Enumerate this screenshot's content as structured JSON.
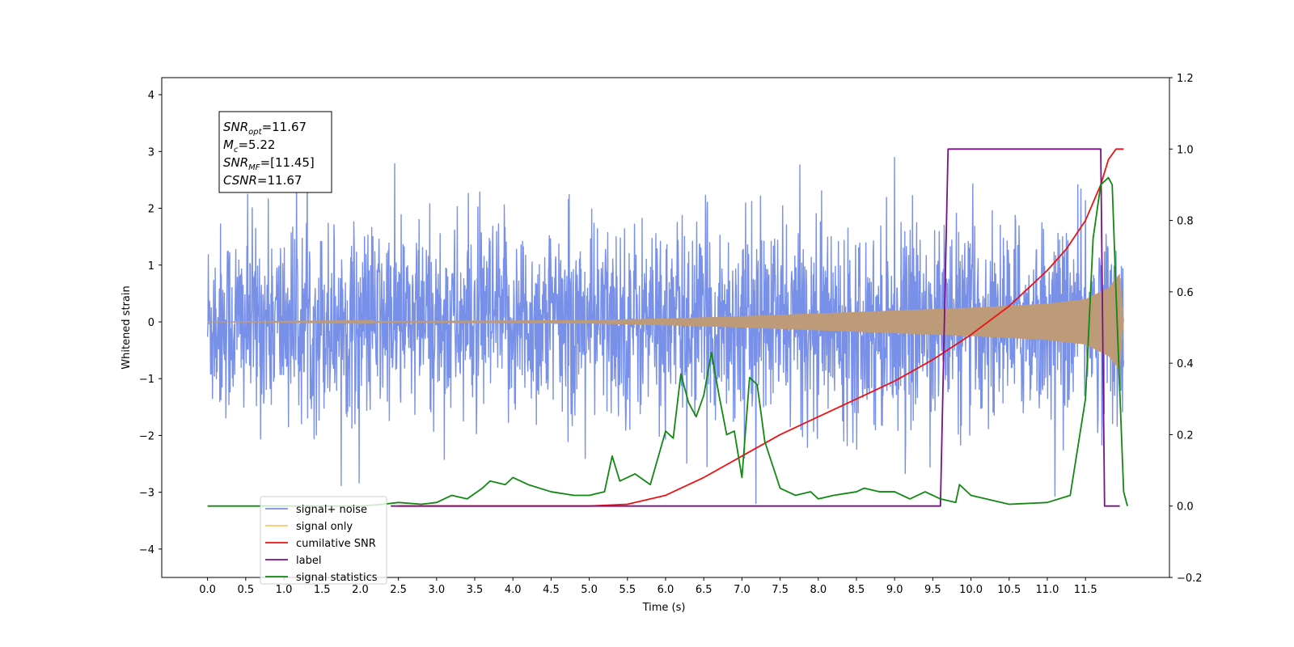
{
  "chart_data": {
    "type": "line",
    "title": "",
    "xlabel": "Time (s)",
    "ylabel": "Whitened strain",
    "xlim": [
      -0.6,
      12.6
    ],
    "ylim": [
      -4.5,
      4.3
    ],
    "y2lim": [
      -0.2,
      1.2
    ],
    "grid": false,
    "legend_position": "lower-left",
    "x_ticks": [
      "0.0",
      "0.5",
      "1.0",
      "1.5",
      "2.0",
      "2.5",
      "3.0",
      "3.5",
      "4.0",
      "4.5",
      "5.0",
      "5.5",
      "6.0",
      "6.5",
      "7.0",
      "7.5",
      "8.0",
      "8.5",
      "9.0",
      "9.5",
      "10.0",
      "10.5",
      "11.0",
      "11.5"
    ],
    "y_ticks": [
      "−4",
      "−3",
      "−2",
      "−1",
      "0",
      "1",
      "2",
      "3",
      "4"
    ],
    "y2_ticks": [
      "−0.2",
      "0.0",
      "0.2",
      "0.4",
      "0.6",
      "0.8",
      "1.0",
      "1.2"
    ],
    "annotations": {
      "snr_opt": {
        "sym": "SNR",
        "sub": "opt",
        "value": "=11.67"
      },
      "mc": {
        "sym": "M",
        "sub": "c",
        "value": "=5.22"
      },
      "snr_mf": {
        "sym": "SNR",
        "sub": "MF",
        "value": "=[11.45]"
      },
      "csnr": {
        "sym": "CSNR",
        "sub": "",
        "value": "=11.67"
      }
    },
    "series": [
      {
        "name": "signal+ noise",
        "color": "#7890e8",
        "axis": "left",
        "kind": "noise",
        "x_range": [
          0,
          12.0
        ],
        "noise_std": 0.85,
        "max": 3.9,
        "min": -4.1
      },
      {
        "name": "signal only",
        "color": "#bd9b78",
        "legend_color": "#ffc66b",
        "axis": "left",
        "kind": "chirp",
        "x_range": [
          0,
          12.0
        ],
        "envelope": [
          [
            0,
            0.0
          ],
          [
            5.0,
            0.03
          ],
          [
            6.0,
            0.06
          ],
          [
            7.0,
            0.1
          ],
          [
            8.0,
            0.15
          ],
          [
            9.0,
            0.2
          ],
          [
            10.0,
            0.25
          ],
          [
            11.0,
            0.32
          ],
          [
            11.5,
            0.4
          ],
          [
            11.8,
            0.6
          ],
          [
            11.95,
            0.85
          ],
          [
            12.0,
            0.0
          ]
        ]
      },
      {
        "name": "cumilative SNR",
        "color": "#ee1111",
        "axis": "right",
        "points": [
          [
            2.5,
            0.0
          ],
          [
            5.0,
            0.0
          ],
          [
            5.5,
            0.005
          ],
          [
            6.0,
            0.03
          ],
          [
            6.5,
            0.08
          ],
          [
            7.0,
            0.14
          ],
          [
            7.5,
            0.2
          ],
          [
            8.0,
            0.25
          ],
          [
            8.5,
            0.3
          ],
          [
            9.0,
            0.35
          ],
          [
            9.5,
            0.41
          ],
          [
            10.0,
            0.48
          ],
          [
            10.5,
            0.56
          ],
          [
            11.0,
            0.66
          ],
          [
            11.25,
            0.72
          ],
          [
            11.5,
            0.8
          ],
          [
            11.7,
            0.9
          ],
          [
            11.8,
            0.97
          ],
          [
            11.9,
            1.0
          ],
          [
            12.0,
            1.0
          ]
        ]
      },
      {
        "name": "label",
        "color": "#7a0f8a",
        "axis": "right",
        "points": [
          [
            2.4,
            0.0
          ],
          [
            9.6,
            0.0
          ],
          [
            9.7,
            1.0
          ],
          [
            11.7,
            1.0
          ],
          [
            11.75,
            0.0
          ],
          [
            11.95,
            0.0
          ]
        ]
      },
      {
        "name": "signal statistics",
        "color": "#118811",
        "axis": "right",
        "points": [
          [
            0.0,
            0.0
          ],
          [
            2.0,
            0.0
          ],
          [
            2.3,
            0.005
          ],
          [
            2.5,
            0.01
          ],
          [
            2.8,
            0.005
          ],
          [
            3.0,
            0.01
          ],
          [
            3.2,
            0.03
          ],
          [
            3.4,
            0.02
          ],
          [
            3.6,
            0.05
          ],
          [
            3.7,
            0.07
          ],
          [
            3.9,
            0.06
          ],
          [
            4.0,
            0.08
          ],
          [
            4.2,
            0.06
          ],
          [
            4.5,
            0.04
          ],
          [
            4.8,
            0.03
          ],
          [
            5.0,
            0.03
          ],
          [
            5.2,
            0.04
          ],
          [
            5.3,
            0.14
          ],
          [
            5.4,
            0.07
          ],
          [
            5.6,
            0.09
          ],
          [
            5.8,
            0.06
          ],
          [
            6.0,
            0.21
          ],
          [
            6.1,
            0.19
          ],
          [
            6.2,
            0.37
          ],
          [
            6.3,
            0.29
          ],
          [
            6.4,
            0.25
          ],
          [
            6.5,
            0.31
          ],
          [
            6.6,
            0.43
          ],
          [
            6.7,
            0.31
          ],
          [
            6.8,
            0.2
          ],
          [
            6.9,
            0.21
          ],
          [
            7.0,
            0.08
          ],
          [
            7.1,
            0.36
          ],
          [
            7.2,
            0.34
          ],
          [
            7.3,
            0.18
          ],
          [
            7.5,
            0.05
          ],
          [
            7.7,
            0.03
          ],
          [
            7.9,
            0.04
          ],
          [
            8.0,
            0.02
          ],
          [
            8.2,
            0.03
          ],
          [
            8.5,
            0.04
          ],
          [
            8.6,
            0.05
          ],
          [
            8.8,
            0.04
          ],
          [
            9.0,
            0.04
          ],
          [
            9.2,
            0.02
          ],
          [
            9.4,
            0.04
          ],
          [
            9.6,
            0.02
          ],
          [
            9.8,
            0.01
          ],
          [
            9.85,
            0.06
          ],
          [
            10.0,
            0.03
          ],
          [
            10.5,
            0.005
          ],
          [
            11.0,
            0.01
          ],
          [
            11.3,
            0.03
          ],
          [
            11.5,
            0.3
          ],
          [
            11.6,
            0.75
          ],
          [
            11.7,
            0.9
          ],
          [
            11.8,
            0.92
          ],
          [
            11.85,
            0.9
          ],
          [
            11.9,
            0.6
          ],
          [
            12.0,
            0.04
          ],
          [
            12.05,
            0.0
          ]
        ]
      }
    ]
  }
}
